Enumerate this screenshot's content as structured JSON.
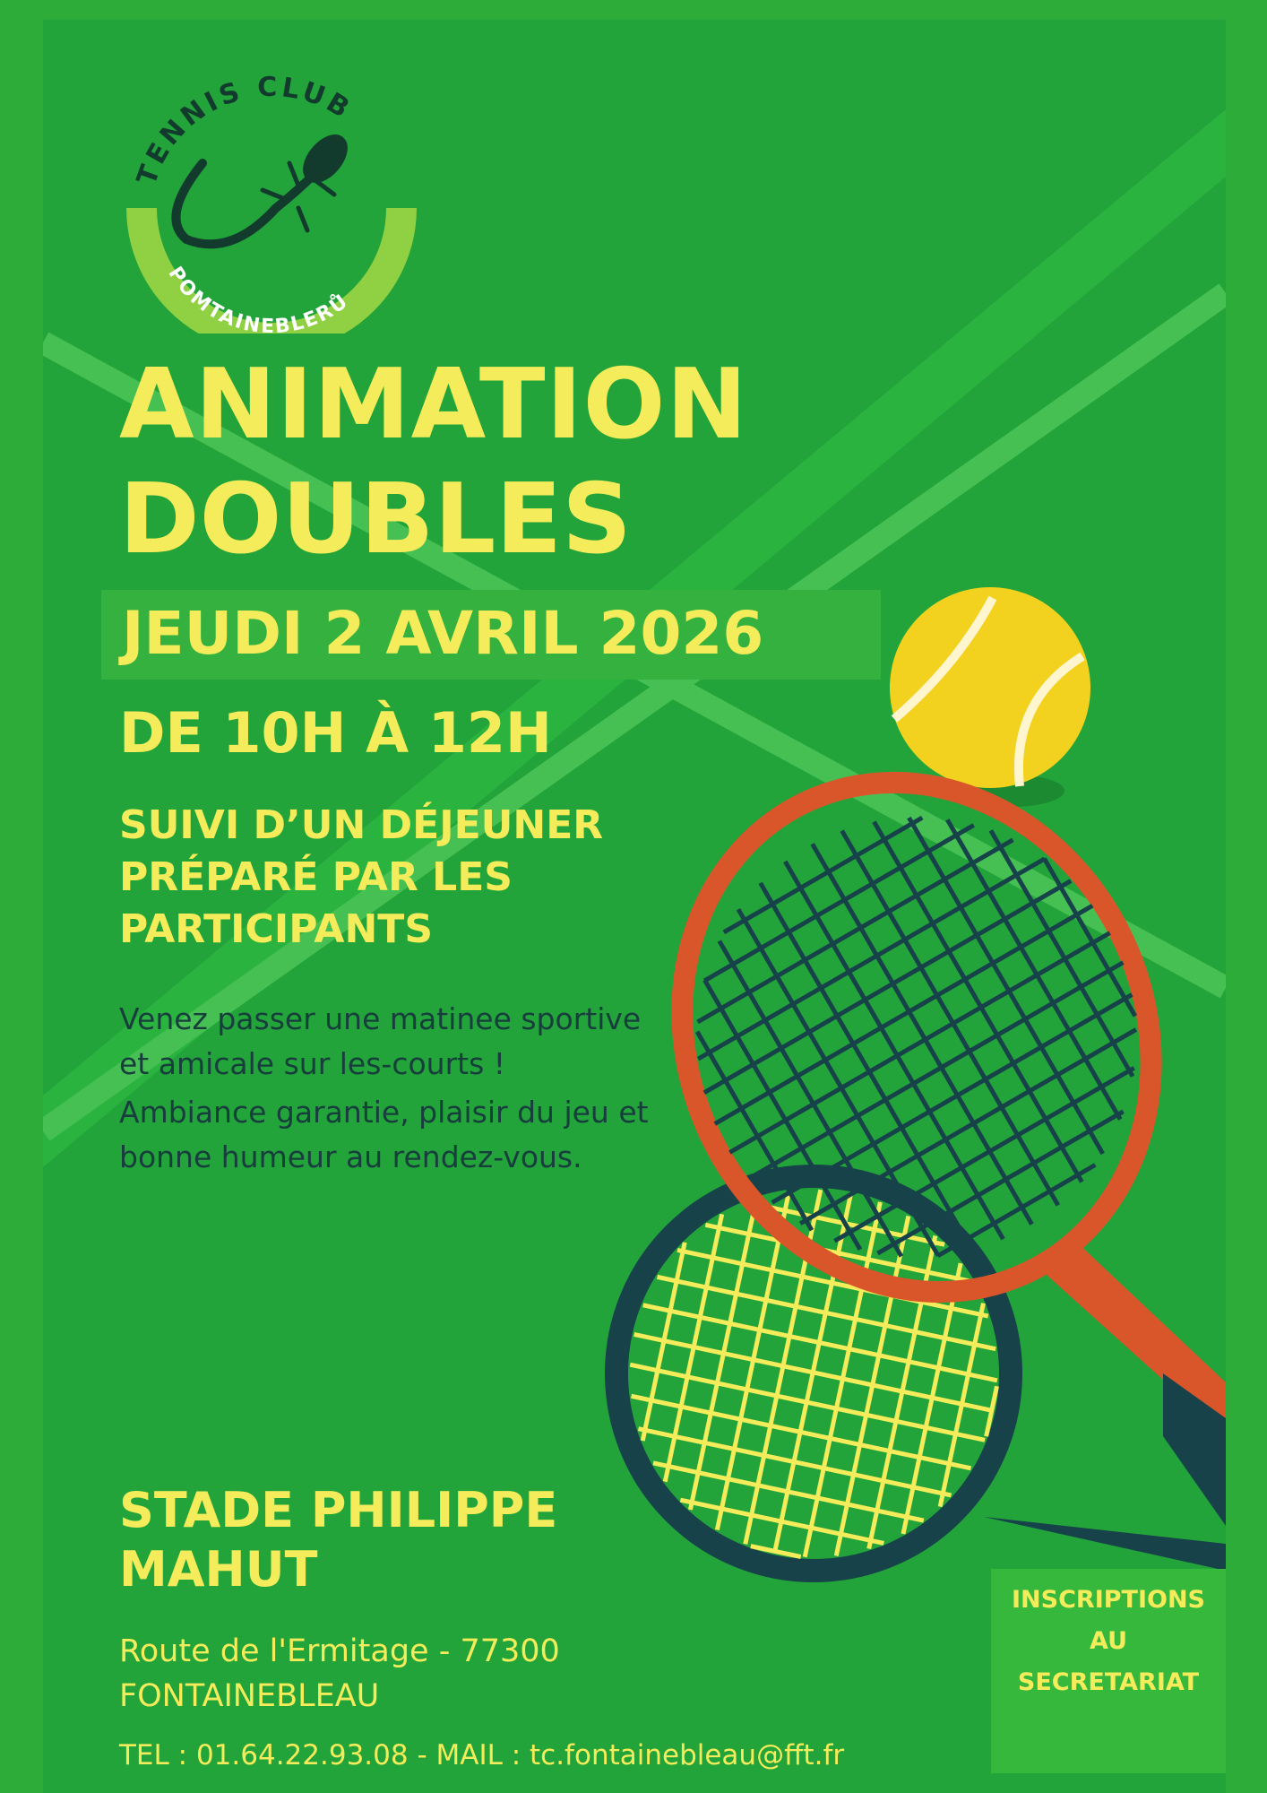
{
  "logo": {
    "top_text": "TENNIS CLUB",
    "bottom_text": "POMTAINEBLERŮ",
    "icon": "lizard-icon"
  },
  "title": {
    "line1": "ANIMATION",
    "line2": "DOUBLES"
  },
  "date": "JEUDI 2 AVRIL 2026",
  "time": "DE 10H À 12H",
  "subtitle": "SUIVI D’UN DÉJEUNER PRÉPARÉ PAR LES PARTICIPANTS",
  "body": {
    "p1": "Venez passer une matinee sportive et amicale sur les-courts !",
    "p2": "Ambiance garantie, plaisir du jeu et bonne humeur au rendez-vous."
  },
  "venue": "STADE PHILIPPE MAHUT",
  "address": {
    "line1": "Route de l'Ermitage - 77300",
    "line2": "FONTAINEBLEAU"
  },
  "contact": "TEL : 01.64.22.93.08 - MAIL : tc.fontainebleau@fft.fr",
  "registration": {
    "line1": "INSCRIPTIONS",
    "line2": "AU",
    "line3": "SECRETARIAT"
  },
  "colors": {
    "background": "#22a43a",
    "text": "#f4ec5a",
    "body_text": "#173d3c",
    "racket_orange": "#d9562a",
    "racket_dark": "#17424a",
    "ball": "#f2d21e"
  }
}
